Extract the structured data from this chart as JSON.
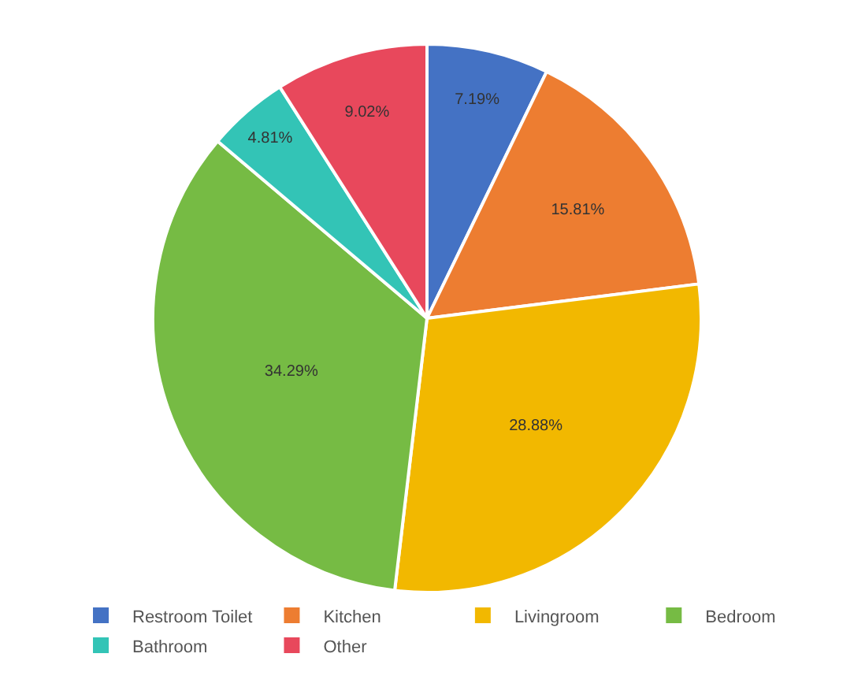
{
  "chart_data": {
    "type": "pie",
    "categories": [
      "Restroom Toilet",
      "Kitchen",
      "Livingroom",
      "Bedroom",
      "Bathroom",
      "Other"
    ],
    "values": [
      7.19,
      15.81,
      28.88,
      34.29,
      4.81,
      9.02
    ],
    "value_labels": [
      "7.19%",
      "15.81%",
      "28.88%",
      "34.29%",
      "4.81%",
      "9.02%"
    ],
    "colors": [
      "#4472c4",
      "#ed7d31",
      "#f2b800",
      "#76bb44",
      "#33c4b6",
      "#e8485c"
    ],
    "legend": "bottom"
  }
}
